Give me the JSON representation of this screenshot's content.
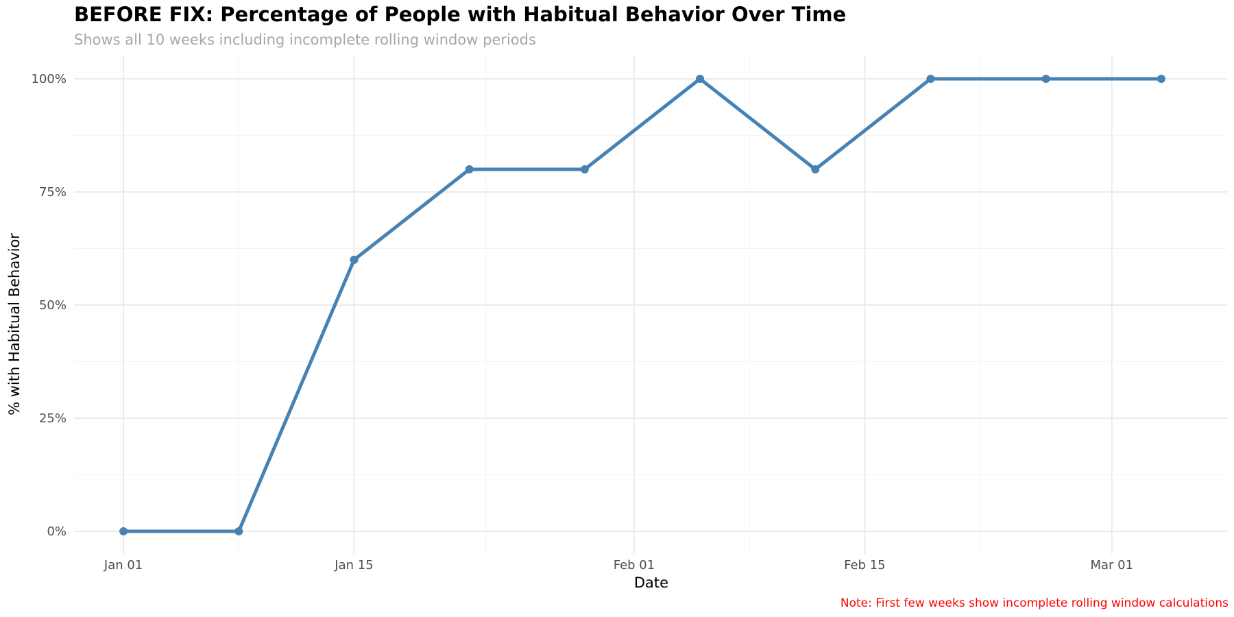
{
  "chart_data": {
    "type": "line",
    "title": "BEFORE FIX: Percentage of People with Habitual Behavior Over Time",
    "subtitle": "Shows all 10 weeks including incomplete rolling window periods",
    "caption": "Note: First few weeks show incomplete rolling window calculations",
    "xlabel": "Date",
    "ylabel": "% with Habitual Behavior",
    "x": [
      "2024-01-01",
      "2024-01-08",
      "2024-01-15",
      "2024-01-22",
      "2024-01-29",
      "2024-02-05",
      "2024-02-12",
      "2024-02-19",
      "2024-02-26",
      "2024-03-04"
    ],
    "series": [
      {
        "values": [
          0,
          0,
          60,
          80,
          80,
          100,
          80,
          100,
          100,
          100
        ]
      }
    ],
    "xlim": [
      "2023-12-29",
      "2024-03-08"
    ],
    "ylim": [
      -5,
      105
    ],
    "x_ticks": [
      {
        "date": "2024-01-01",
        "label": "Jan 01"
      },
      {
        "date": "2024-01-15",
        "label": "Jan 15"
      },
      {
        "date": "2024-02-01",
        "label": "Feb 01"
      },
      {
        "date": "2024-02-15",
        "label": "Feb 15"
      },
      {
        "date": "2024-03-01",
        "label": "Mar 01"
      }
    ],
    "x_minor_ticks": [
      "2024-01-08",
      "2024-01-23",
      "2024-02-08",
      "2024-02-22"
    ],
    "y_ticks": [
      {
        "value": 0,
        "label": "0%"
      },
      {
        "value": 25,
        "label": "25%"
      },
      {
        "value": 50,
        "label": "50%"
      },
      {
        "value": 75,
        "label": "75%"
      },
      {
        "value": 100,
        "label": "100%"
      }
    ],
    "y_minor_ticks": [
      12.5,
      37.5,
      62.5,
      87.5
    ],
    "grid": true,
    "line_color": "#4682b4",
    "grid_color": "#ebebeb",
    "caption_color": "#ff0000"
  }
}
